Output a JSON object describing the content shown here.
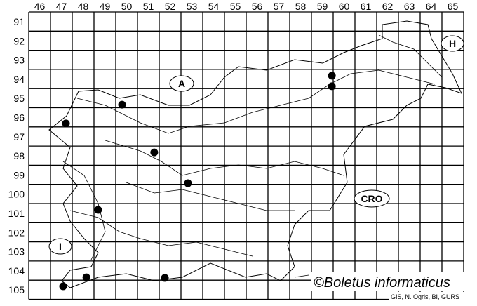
{
  "map": {
    "column_labels": [
      "46",
      "47",
      "48",
      "49",
      "50",
      "51",
      "52",
      "53",
      "54",
      "55",
      "56",
      "57",
      "58",
      "59",
      "60",
      "61",
      "62",
      "63",
      "64",
      "65"
    ],
    "row_labels": [
      "91",
      "92",
      "93",
      "94",
      "95",
      "96",
      "97",
      "98",
      "99",
      "100",
      "101",
      "102",
      "103",
      "104",
      "105"
    ],
    "country_labels": {
      "austria": "A",
      "hungary": "H",
      "croatia": "CRO",
      "italy": "I"
    },
    "records": [
      {
        "col": 59.94,
        "row": 94.33
      },
      {
        "col": 59.94,
        "row": 94.88
      },
      {
        "col": 50.29,
        "row": 95.84
      },
      {
        "col": 47.71,
        "row": 96.82
      },
      {
        "col": 51.77,
        "row": 98.33
      },
      {
        "col": 53.32,
        "row": 99.94
      },
      {
        "col": 49.19,
        "row": 101.33
      },
      {
        "col": 48.65,
        "row": 104.85
      },
      {
        "col": 52.26,
        "row": 104.88
      },
      {
        "col": 47.58,
        "row": 105.32
      }
    ],
    "record_color": "#000000",
    "copyright": "©Boletus informaticus",
    "credit": "GIS, N. Ogris, BI, GURS"
  }
}
